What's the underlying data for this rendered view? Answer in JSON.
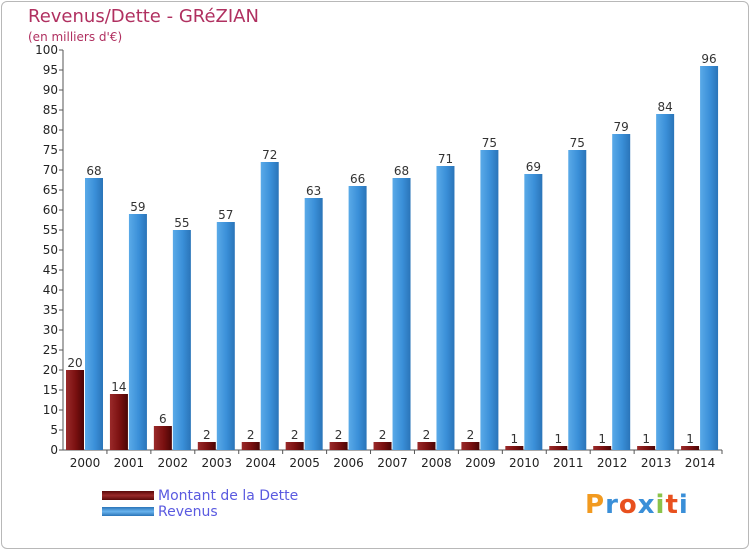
{
  "header": {
    "title": "Revenus/Dette - GRéZIAN",
    "subtitle": "(en milliers d'€)"
  },
  "colors": {
    "dette": "#7a1010",
    "revenus": "#3a8fd8",
    "title": "#b03060"
  },
  "legend": {
    "items": [
      {
        "label": "Montant de la Dette",
        "color": "#7a1010"
      },
      {
        "label": "Revenus",
        "color": "#3a8fd8"
      }
    ]
  },
  "logo": {
    "text": "Proxiti",
    "letters": [
      "P",
      "r",
      "o",
      "x",
      "i",
      "t",
      "i"
    ],
    "letter_colors": [
      "#f29a1f",
      "#3a8fd8",
      "#e8501e",
      "#3a8fd8",
      "#8bc34a",
      "#e8501e",
      "#3a8fd8"
    ]
  },
  "chart_data": {
    "type": "bar",
    "title": "Revenus/Dette - GRéZIAN",
    "subtitle": "(en milliers d'€)",
    "xlabel": "",
    "ylabel": "",
    "ylim": [
      0,
      100
    ],
    "ytick_step": 5,
    "grid": false,
    "legend_position": "bottom-left",
    "categories": [
      "2000",
      "2001",
      "2002",
      "2003",
      "2004",
      "2005",
      "2006",
      "2007",
      "2008",
      "2009",
      "2010",
      "2011",
      "2012",
      "2013",
      "2014"
    ],
    "series": [
      {
        "name": "Montant de la Dette",
        "values": [
          20,
          14,
          6,
          2,
          2,
          2,
          2,
          2,
          2,
          2,
          1,
          1,
          1,
          1,
          1
        ]
      },
      {
        "name": "Revenus",
        "values": [
          68,
          59,
          55,
          57,
          72,
          63,
          66,
          68,
          71,
          75,
          69,
          75,
          79,
          84,
          96
        ]
      }
    ]
  }
}
